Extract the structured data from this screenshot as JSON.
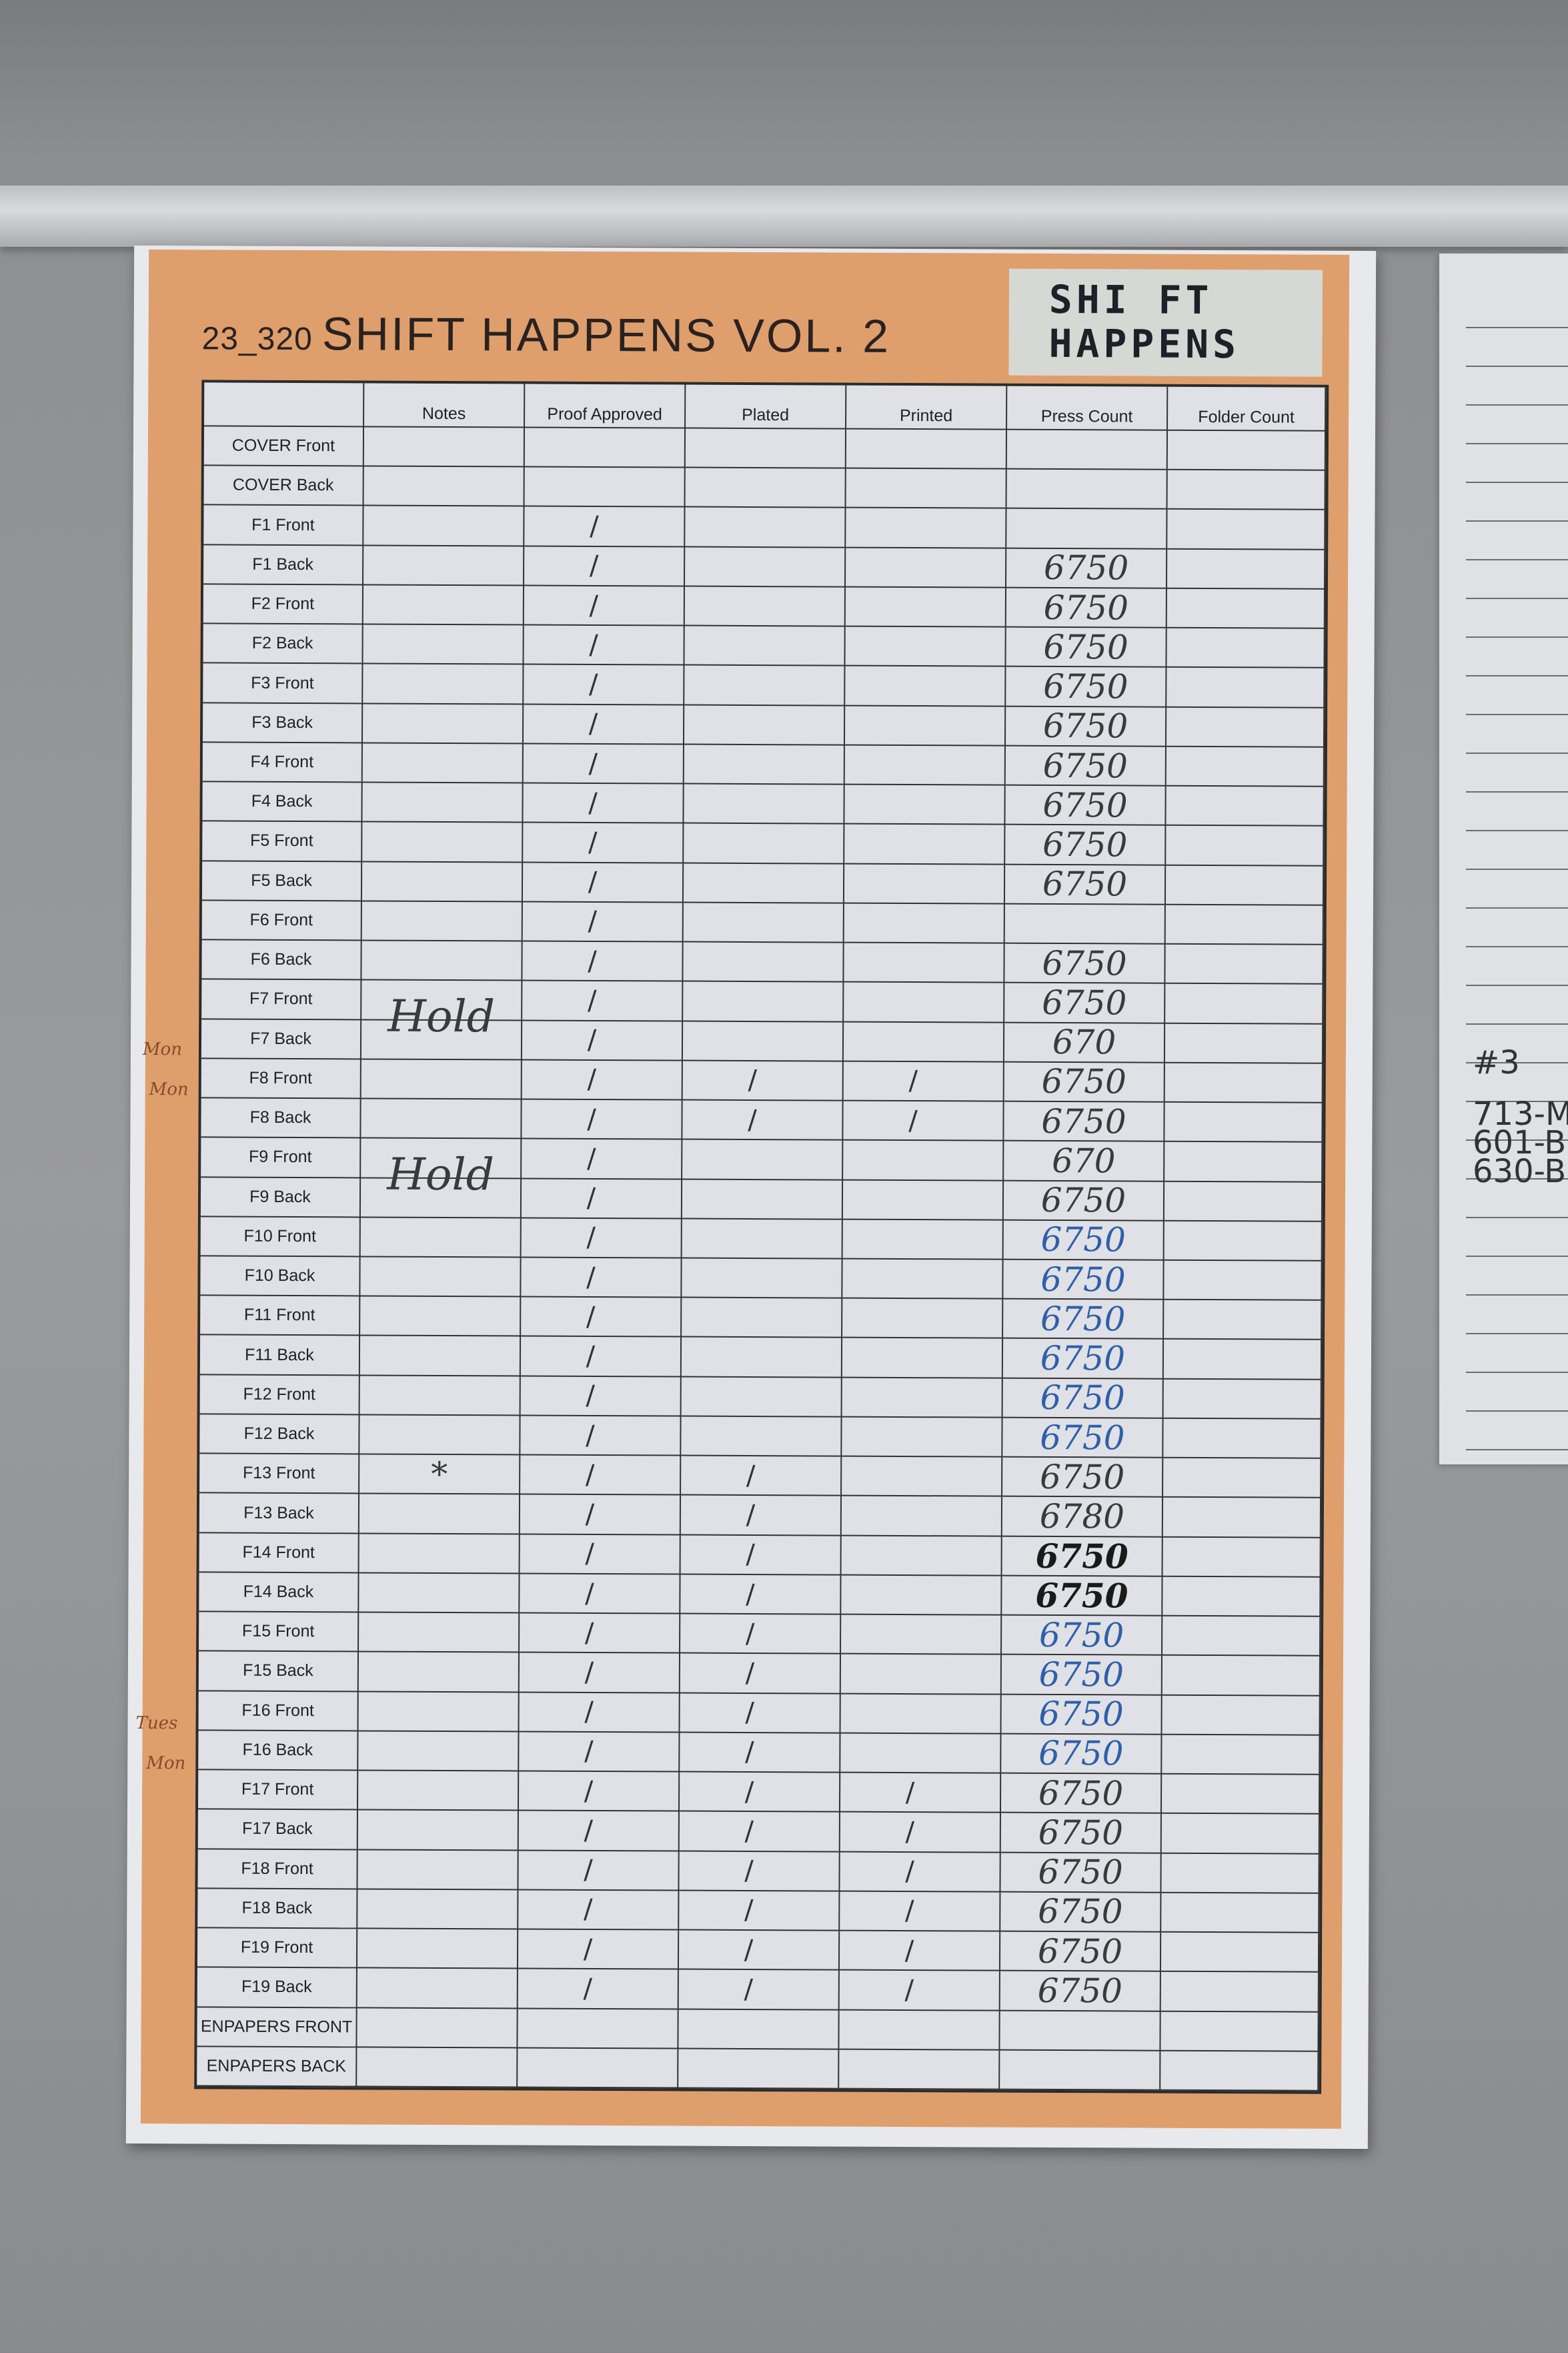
{
  "sheet": {
    "job_number": "23_320",
    "title": "SHIFT HAPPENS VOL. 2",
    "stamp_line1": "SHI FT",
    "stamp_line2": "HAPPENS",
    "columns": [
      "",
      "Notes",
      "Proof Approved",
      "Plated",
      "Printed",
      "Press Count",
      "Folder Count"
    ],
    "rows": [
      {
        "label": "COVER Front",
        "notes": "",
        "proof": "",
        "plated": "",
        "printed": "",
        "press": "",
        "folder": ""
      },
      {
        "label": "COVER Back",
        "notes": "",
        "proof": "",
        "plated": "",
        "printed": "",
        "press": "",
        "folder": ""
      },
      {
        "label": "F1 Front",
        "notes": "",
        "proof": "/",
        "plated": "",
        "printed": "",
        "press": "",
        "folder": ""
      },
      {
        "label": "F1 Back",
        "notes": "",
        "proof": "/",
        "plated": "",
        "printed": "",
        "press": "6750",
        "folder": ""
      },
      {
        "label": "F2 Front",
        "notes": "",
        "proof": "/",
        "plated": "",
        "printed": "",
        "press": "6750",
        "folder": ""
      },
      {
        "label": "F2 Back",
        "notes": "",
        "proof": "/",
        "plated": "",
        "printed": "",
        "press": "6750",
        "folder": ""
      },
      {
        "label": "F3 Front",
        "notes": "",
        "proof": "/",
        "plated": "",
        "printed": "",
        "press": "6750",
        "folder": ""
      },
      {
        "label": "F3 Back",
        "notes": "",
        "proof": "/",
        "plated": "",
        "printed": "",
        "press": "6750",
        "folder": ""
      },
      {
        "label": "F4 Front",
        "notes": "",
        "proof": "/",
        "plated": "",
        "printed": "",
        "press": "6750",
        "folder": ""
      },
      {
        "label": "F4 Back",
        "notes": "",
        "proof": "/",
        "plated": "",
        "printed": "",
        "press": "6750",
        "folder": ""
      },
      {
        "label": "F5 Front",
        "notes": "",
        "proof": "/",
        "plated": "",
        "printed": "",
        "press": "6750",
        "folder": ""
      },
      {
        "label": "F5 Back",
        "notes": "",
        "proof": "/",
        "plated": "",
        "printed": "",
        "press": "6750",
        "folder": ""
      },
      {
        "label": "F6 Front",
        "notes": "",
        "proof": "/",
        "plated": "",
        "printed": "",
        "press": "",
        "folder": ""
      },
      {
        "label": "F6 Back",
        "notes": "",
        "proof": "/",
        "plated": "",
        "printed": "",
        "press": "6750",
        "folder": ""
      },
      {
        "label": "F7 Front",
        "notes": "Hold",
        "proof": "/",
        "plated": "",
        "printed": "",
        "press": "6750",
        "folder": ""
      },
      {
        "label": "F7 Back",
        "notes": "",
        "proof": "/",
        "plated": "",
        "printed": "",
        "press": "670",
        "folder": ""
      },
      {
        "label": "F8 Front",
        "notes": "",
        "proof": "/",
        "plated": "/",
        "printed": "/",
        "press": "6750",
        "folder": ""
      },
      {
        "label": "F8 Back",
        "notes": "",
        "proof": "/",
        "plated": "/",
        "printed": "/",
        "press": "6750",
        "folder": ""
      },
      {
        "label": "F9 Front",
        "notes": "Hold",
        "proof": "/",
        "plated": "",
        "printed": "",
        "press": "670",
        "folder": ""
      },
      {
        "label": "F9 Back",
        "notes": "",
        "proof": "/",
        "plated": "",
        "printed": "",
        "press": "6750",
        "folder": ""
      },
      {
        "label": "F10 Front",
        "notes": "",
        "proof": "/",
        "plated": "",
        "printed": "",
        "press": "6750",
        "folder": "",
        "ink": "blue"
      },
      {
        "label": "F10 Back",
        "notes": "",
        "proof": "/",
        "plated": "",
        "printed": "",
        "press": "6750",
        "folder": "",
        "ink": "blue"
      },
      {
        "label": "F11 Front",
        "notes": "",
        "proof": "/",
        "plated": "",
        "printed": "",
        "press": "6750",
        "folder": "",
        "ink": "blue"
      },
      {
        "label": "F11 Back",
        "notes": "",
        "proof": "/",
        "plated": "",
        "printed": "",
        "press": "6750",
        "folder": "",
        "ink": "blue"
      },
      {
        "label": "F12 Front",
        "notes": "",
        "proof": "/",
        "plated": "",
        "printed": "",
        "press": "6750",
        "folder": "",
        "ink": "blue"
      },
      {
        "label": "F12 Back",
        "notes": "",
        "proof": "/",
        "plated": "",
        "printed": "",
        "press": "6750",
        "folder": "",
        "ink": "blue"
      },
      {
        "label": "F13 Front",
        "notes": "*",
        "proof": "/",
        "plated": "/",
        "printed": "",
        "press": "6750",
        "folder": ""
      },
      {
        "label": "F13 Back",
        "notes": "",
        "proof": "/",
        "plated": "/",
        "printed": "",
        "press": "6780",
        "folder": ""
      },
      {
        "label": "F14 Front",
        "notes": "",
        "proof": "/",
        "plated": "/",
        "printed": "",
        "press": "6750",
        "folder": "",
        "ink": "bold"
      },
      {
        "label": "F14 Back",
        "notes": "",
        "proof": "/",
        "plated": "/",
        "printed": "",
        "press": "6750",
        "folder": "",
        "ink": "bold"
      },
      {
        "label": "F15 Front",
        "notes": "",
        "proof": "/",
        "plated": "/",
        "printed": "",
        "press": "6750",
        "folder": "",
        "ink": "blue"
      },
      {
        "label": "F15 Back",
        "notes": "",
        "proof": "/",
        "plated": "/",
        "printed": "",
        "press": "6750",
        "folder": "",
        "ink": "blue"
      },
      {
        "label": "F16 Front",
        "notes": "",
        "proof": "/",
        "plated": "/",
        "printed": "",
        "press": "6750",
        "folder": "",
        "ink": "blue"
      },
      {
        "label": "F16 Back",
        "notes": "",
        "proof": "/",
        "plated": "/",
        "printed": "",
        "press": "6750",
        "folder": "",
        "ink": "blue"
      },
      {
        "label": "F17 Front",
        "notes": "",
        "proof": "/",
        "plated": "/",
        "printed": "/",
        "press": "6750",
        "folder": ""
      },
      {
        "label": "F17 Back",
        "notes": "",
        "proof": "/",
        "plated": "/",
        "printed": "/",
        "press": "6750",
        "folder": ""
      },
      {
        "label": "F18 Front",
        "notes": "",
        "proof": "/",
        "plated": "/",
        "printed": "/",
        "press": "6750",
        "folder": ""
      },
      {
        "label": "F18 Back",
        "notes": "",
        "proof": "/",
        "plated": "/",
        "printed": "/",
        "press": "6750",
        "folder": ""
      },
      {
        "label": "F19 Front",
        "notes": "",
        "proof": "/",
        "plated": "/",
        "printed": "/",
        "press": "6750",
        "folder": ""
      },
      {
        "label": "F19 Back",
        "notes": "",
        "proof": "/",
        "plated": "/",
        "printed": "/",
        "press": "6750",
        "folder": ""
      },
      {
        "label": "ENPAPERS FRONT",
        "notes": "",
        "proof": "",
        "plated": "",
        "printed": "",
        "press": "",
        "folder": ""
      },
      {
        "label": "ENPAPERS BACK",
        "notes": "",
        "proof": "",
        "plated": "",
        "printed": "",
        "press": "",
        "folder": ""
      }
    ],
    "margin_notes": [
      "Mon",
      "Mon",
      "Tues",
      "Mon"
    ]
  },
  "side_sheet": {
    "lines": [
      "#3",
      "713-M",
      "601-B",
      "630-B"
    ]
  },
  "colors": {
    "orange": "#de9f6d",
    "blue_ink": "#2f5fa8",
    "paper": "#e8e9ec"
  }
}
